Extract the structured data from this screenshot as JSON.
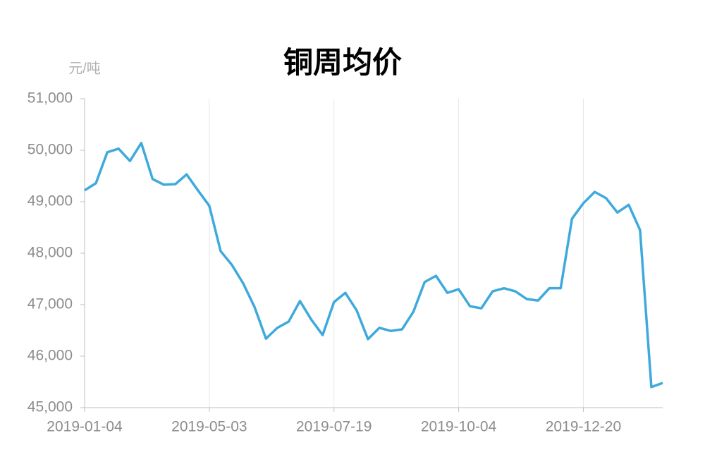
{
  "chart_data": {
    "type": "line",
    "title": "铜周均价",
    "y_label": "元/吨",
    "categories": [
      "2019-01-04",
      null,
      null,
      null,
      null,
      null,
      null,
      null,
      null,
      null,
      null,
      "2019-05-03",
      null,
      null,
      null,
      null,
      null,
      null,
      null,
      null,
      null,
      null,
      "2019-07-19",
      null,
      null,
      null,
      null,
      null,
      null,
      null,
      null,
      null,
      null,
      "2019-10-04",
      null,
      null,
      null,
      null,
      null,
      null,
      null,
      null,
      null,
      null,
      "2019-12-20",
      null,
      null,
      null,
      null,
      null,
      null,
      null
    ],
    "series": [
      {
        "name": "铜周均价",
        "color": "#3eaadc",
        "values": [
          49220,
          49360,
          49960,
          50030,
          49790,
          50140,
          49440,
          49330,
          49340,
          49530,
          49220,
          48920,
          48040,
          47770,
          47410,
          46950,
          46340,
          46550,
          46670,
          47070,
          46710,
          46410,
          47050,
          47230,
          46890,
          46330,
          46550,
          46490,
          46520,
          46860,
          47440,
          47560,
          47230,
          47300,
          46970,
          46930,
          47260,
          47320,
          47260,
          47110,
          47080,
          47320,
          47320,
          48670,
          48970,
          49190,
          49070,
          48790,
          48940,
          48450,
          45400,
          45480
        ]
      }
    ],
    "ylim": [
      45000,
      51000
    ],
    "yticks": [
      {
        "value": 45000,
        "label": "45,000"
      },
      {
        "value": 46000,
        "label": "46,000"
      },
      {
        "value": 47000,
        "label": "47,000"
      },
      {
        "value": 48000,
        "label": "48,000"
      },
      {
        "value": 49000,
        "label": "49,000"
      },
      {
        "value": 50000,
        "label": "50,000"
      },
      {
        "value": 51000,
        "label": "51,000"
      }
    ],
    "grid": true
  }
}
